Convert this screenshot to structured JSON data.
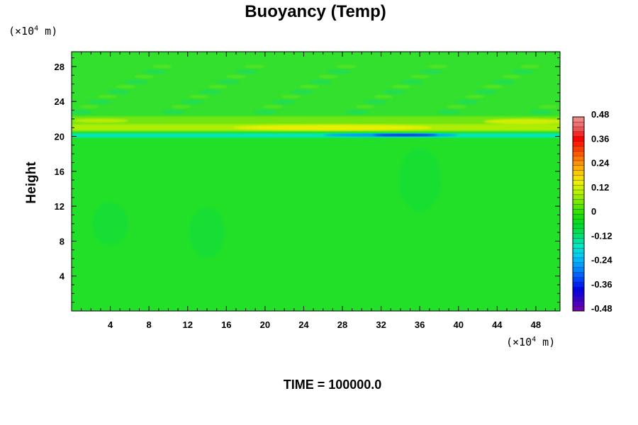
{
  "chart_data": {
    "type": "heatmap",
    "title": "Buoyancy (Temp)",
    "ylabel": "Height",
    "xlabel": "",
    "x_unit": {
      "prefix": "(×10",
      "exp": "4",
      "suffix": " m)"
    },
    "y_unit": {
      "prefix": "(×10",
      "exp": "4",
      "suffix": " m)"
    },
    "xlim": [
      0,
      50.5
    ],
    "ylim": [
      0,
      29.7
    ],
    "x_ticks": [
      "4",
      "8",
      "12",
      "16",
      "20",
      "24",
      "28",
      "32",
      "36",
      "40",
      "44",
      "48"
    ],
    "y_ticks": [
      "4",
      "8",
      "12",
      "16",
      "20",
      "24",
      "28"
    ],
    "colorbar": {
      "range": [
        -0.48,
        0.48
      ],
      "tick_labels": [
        "0.48",
        "0.36",
        "0.24",
        "0.12",
        "0",
        "-0.12",
        "-0.24",
        "-0.36",
        "-0.48"
      ],
      "colors": [
        "#7a00a8",
        "#3a00c8",
        "#0000e8",
        "#0048ff",
        "#0090ff",
        "#00c8ff",
        "#00e8c8",
        "#00e070",
        "#00dc28",
        "#20e000",
        "#70e800",
        "#b8f000",
        "#f0f000",
        "#ffc000",
        "#ff8000",
        "#ff4000",
        "#ff0000",
        "#f06060",
        "#f09090"
      ]
    },
    "field_description_values": {
      "background": 0.0,
      "band_height": 20,
      "max_positive": 0.2,
      "min_negative": -0.4,
      "min_negative_x": 34
    },
    "footer": "TIME = 100000.0"
  }
}
